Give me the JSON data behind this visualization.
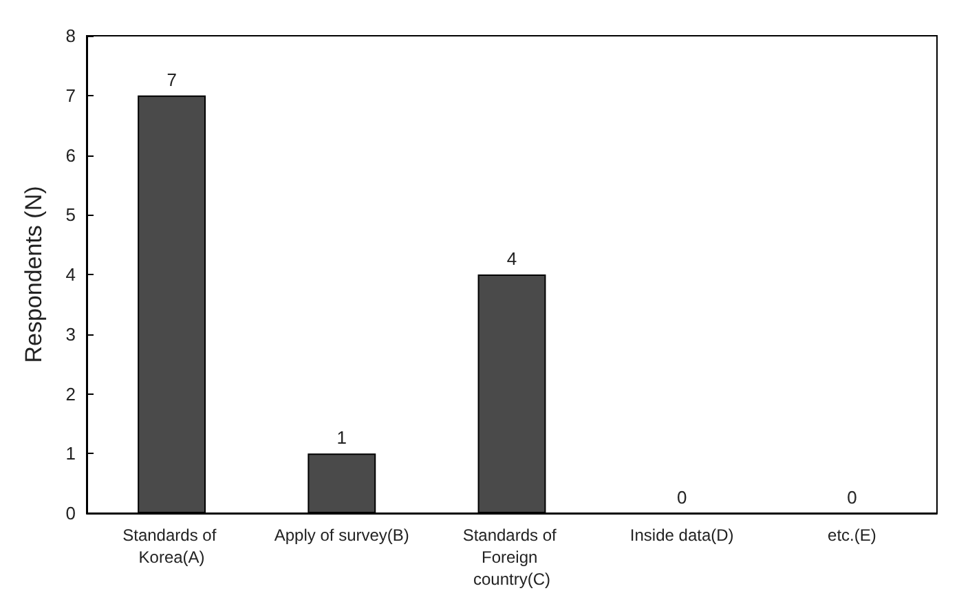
{
  "chart_data": {
    "type": "bar",
    "ylabel": "Respondents (N)",
    "categories": [
      "Standards of Korea(A)",
      "Apply of survey(B)",
      "Standards of Foreign country(C)",
      "Inside data(D)",
      "etc.(E)"
    ],
    "values": [
      7,
      1,
      4,
      0,
      0
    ],
    "color": "#4a4a4a",
    "ylim": [
      0,
      8
    ],
    "yticks": [
      0,
      1,
      2,
      3,
      4,
      5,
      6,
      7,
      8
    ],
    "grid": false,
    "data_labels": true
  }
}
